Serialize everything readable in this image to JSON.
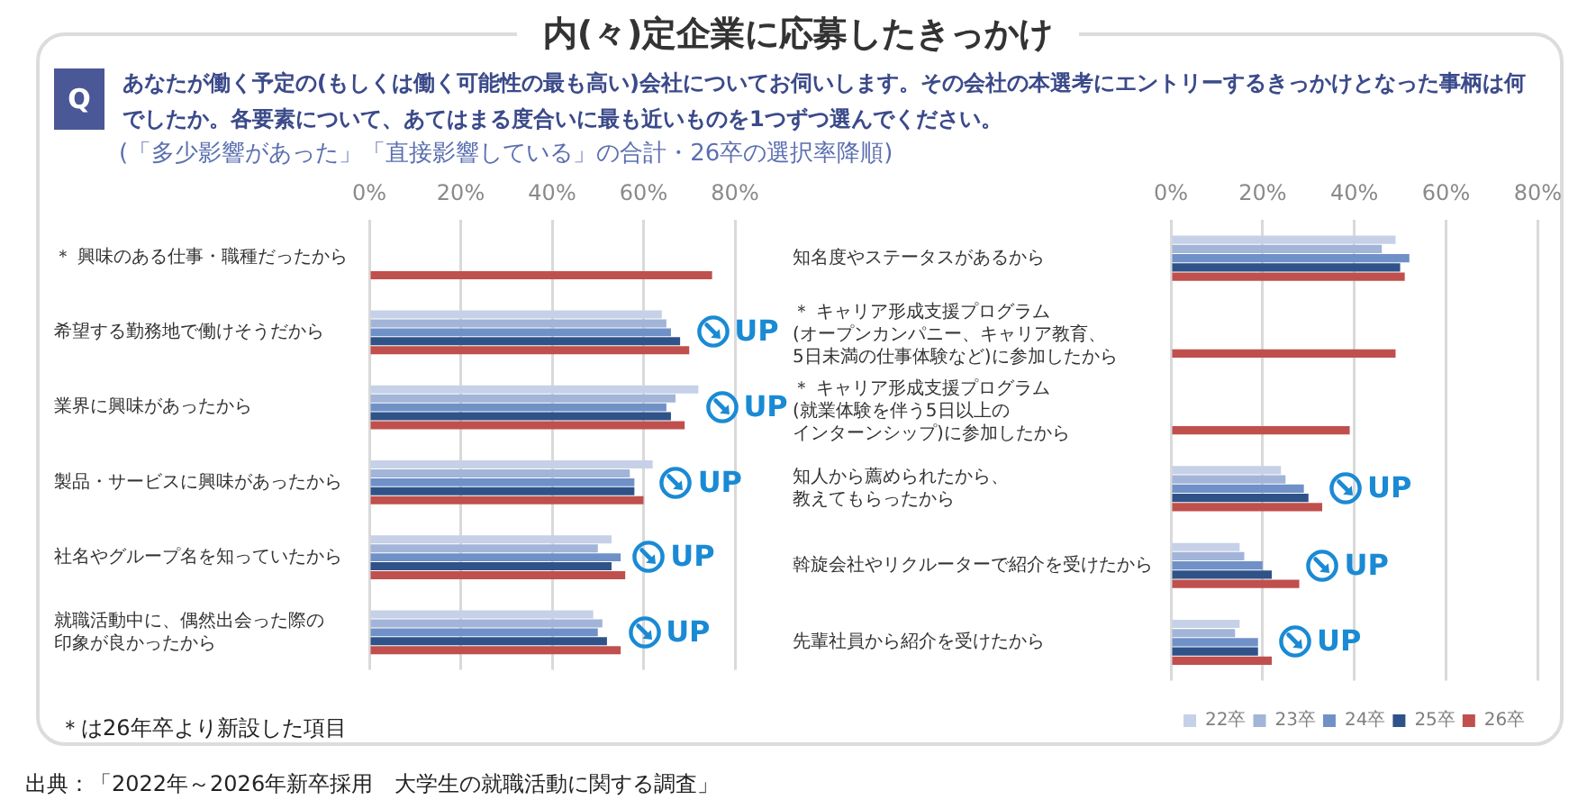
{
  "chart_data": [
    {
      "type": "bar",
      "title": "内(々)定企業に応募したきっかけ",
      "subtitle": "あなたが働く予定の(もしくは働く可能性の最も高い)会社についてお伺いします。その会社の本選考にエントリーするきっかけとなった事柄は何でしたか。各要素について、あてはまる度合いに最も近いものを1つずつ選んでください。",
      "orientation": "horizontal",
      "categories": [
        "＊ 興味のある仕事・職種だったから",
        "希望する勤務地で働けそうだから",
        "業界に興味があったから",
        "製品・サービスに興味があったから",
        "社名やグループ名を知っていたから",
        "就職活動中に、偶然出会った際の印象が良かったから"
      ],
      "series": [
        {
          "color": "#c6d1e8",
          "values": [
            null,
            64,
            72,
            62,
            53,
            49
          ]
        },
        {
          "color": "#a2b4d8",
          "values": [
            null,
            65,
            67,
            57,
            50,
            51
          ]
        },
        {
          "color": "#7090c8",
          "values": [
            null,
            66,
            65,
            58,
            55,
            50
          ]
        },
        {
          "color": "#2f5288",
          "values": [
            null,
            68,
            66,
            58,
            53,
            52
          ]
        },
        {
          "color": "#c0504d",
          "values": [
            75,
            70,
            69,
            60,
            56,
            55
          ]
        }
      ],
      "xlim": [
        0,
        80
      ],
      "xticks": [
        {
          "value": 0,
          "label": "0%"
        },
        {
          "value": 20,
          "label": "20%"
        },
        {
          "value": 40,
          "label": "40%"
        },
        {
          "value": 60,
          "label": "60%"
        },
        {
          "value": 80,
          "label": "80%"
        }
      ],
      "grid": "x",
      "legend": false,
      "annotations": [
        "Q",
        "(「多少影響があった」「直接影響している」の合計・26卒の選択率降順)",
        "＊は26年卒より新設した項目",
        "出典：「2022年～2026年新卒採用　大学生の就職活動に関する調査」",
        "UP",
        "UP",
        "UP",
        "UP",
        "UP"
      ]
    },
    {
      "type": "bar",
      "orientation": "horizontal",
      "categories": [
        "知名度やステータスがあるから",
        "＊ キャリア形成支援プログラム(オープンカンパニー、キャリア教育、5日未満の仕事体験など)に参加したから",
        "＊ キャリア形成支援プログラム(就業体験を伴う5日以上のインターンシップ)に参加したから",
        "知人から薦められたから、教えてもらったから",
        "斡旋会社やリクルーターで紹介を受けたから",
        "先輩社員から紹介を受けたから"
      ],
      "series": [
        {
          "name": "22卒",
          "color": "#c6d1e8",
          "values": [
            49,
            null,
            null,
            24,
            15,
            15
          ]
        },
        {
          "name": "23卒",
          "color": "#a2b4d8",
          "values": [
            46,
            null,
            null,
            25,
            16,
            14
          ]
        },
        {
          "name": "24卒",
          "color": "#7090c8",
          "values": [
            52,
            null,
            null,
            29,
            20,
            19
          ]
        },
        {
          "name": "25卒",
          "color": "#2f5288",
          "values": [
            50,
            null,
            null,
            30,
            22,
            19
          ]
        },
        {
          "name": "26卒",
          "color": "#c0504d",
          "values": [
            51,
            49,
            39,
            33,
            28,
            22
          ]
        }
      ],
      "xlim": [
        0,
        80
      ],
      "xticks": [
        {
          "value": 0,
          "label": "0%"
        },
        {
          "value": 20,
          "label": "20%"
        },
        {
          "value": 40,
          "label": "40%"
        },
        {
          "value": 60,
          "label": "60%"
        },
        {
          "value": 80,
          "label": "80%"
        }
      ],
      "grid": "x",
      "legend": "bottom",
      "annotations": [
        "UP",
        "UP",
        "UP"
      ]
    }
  ]
}
